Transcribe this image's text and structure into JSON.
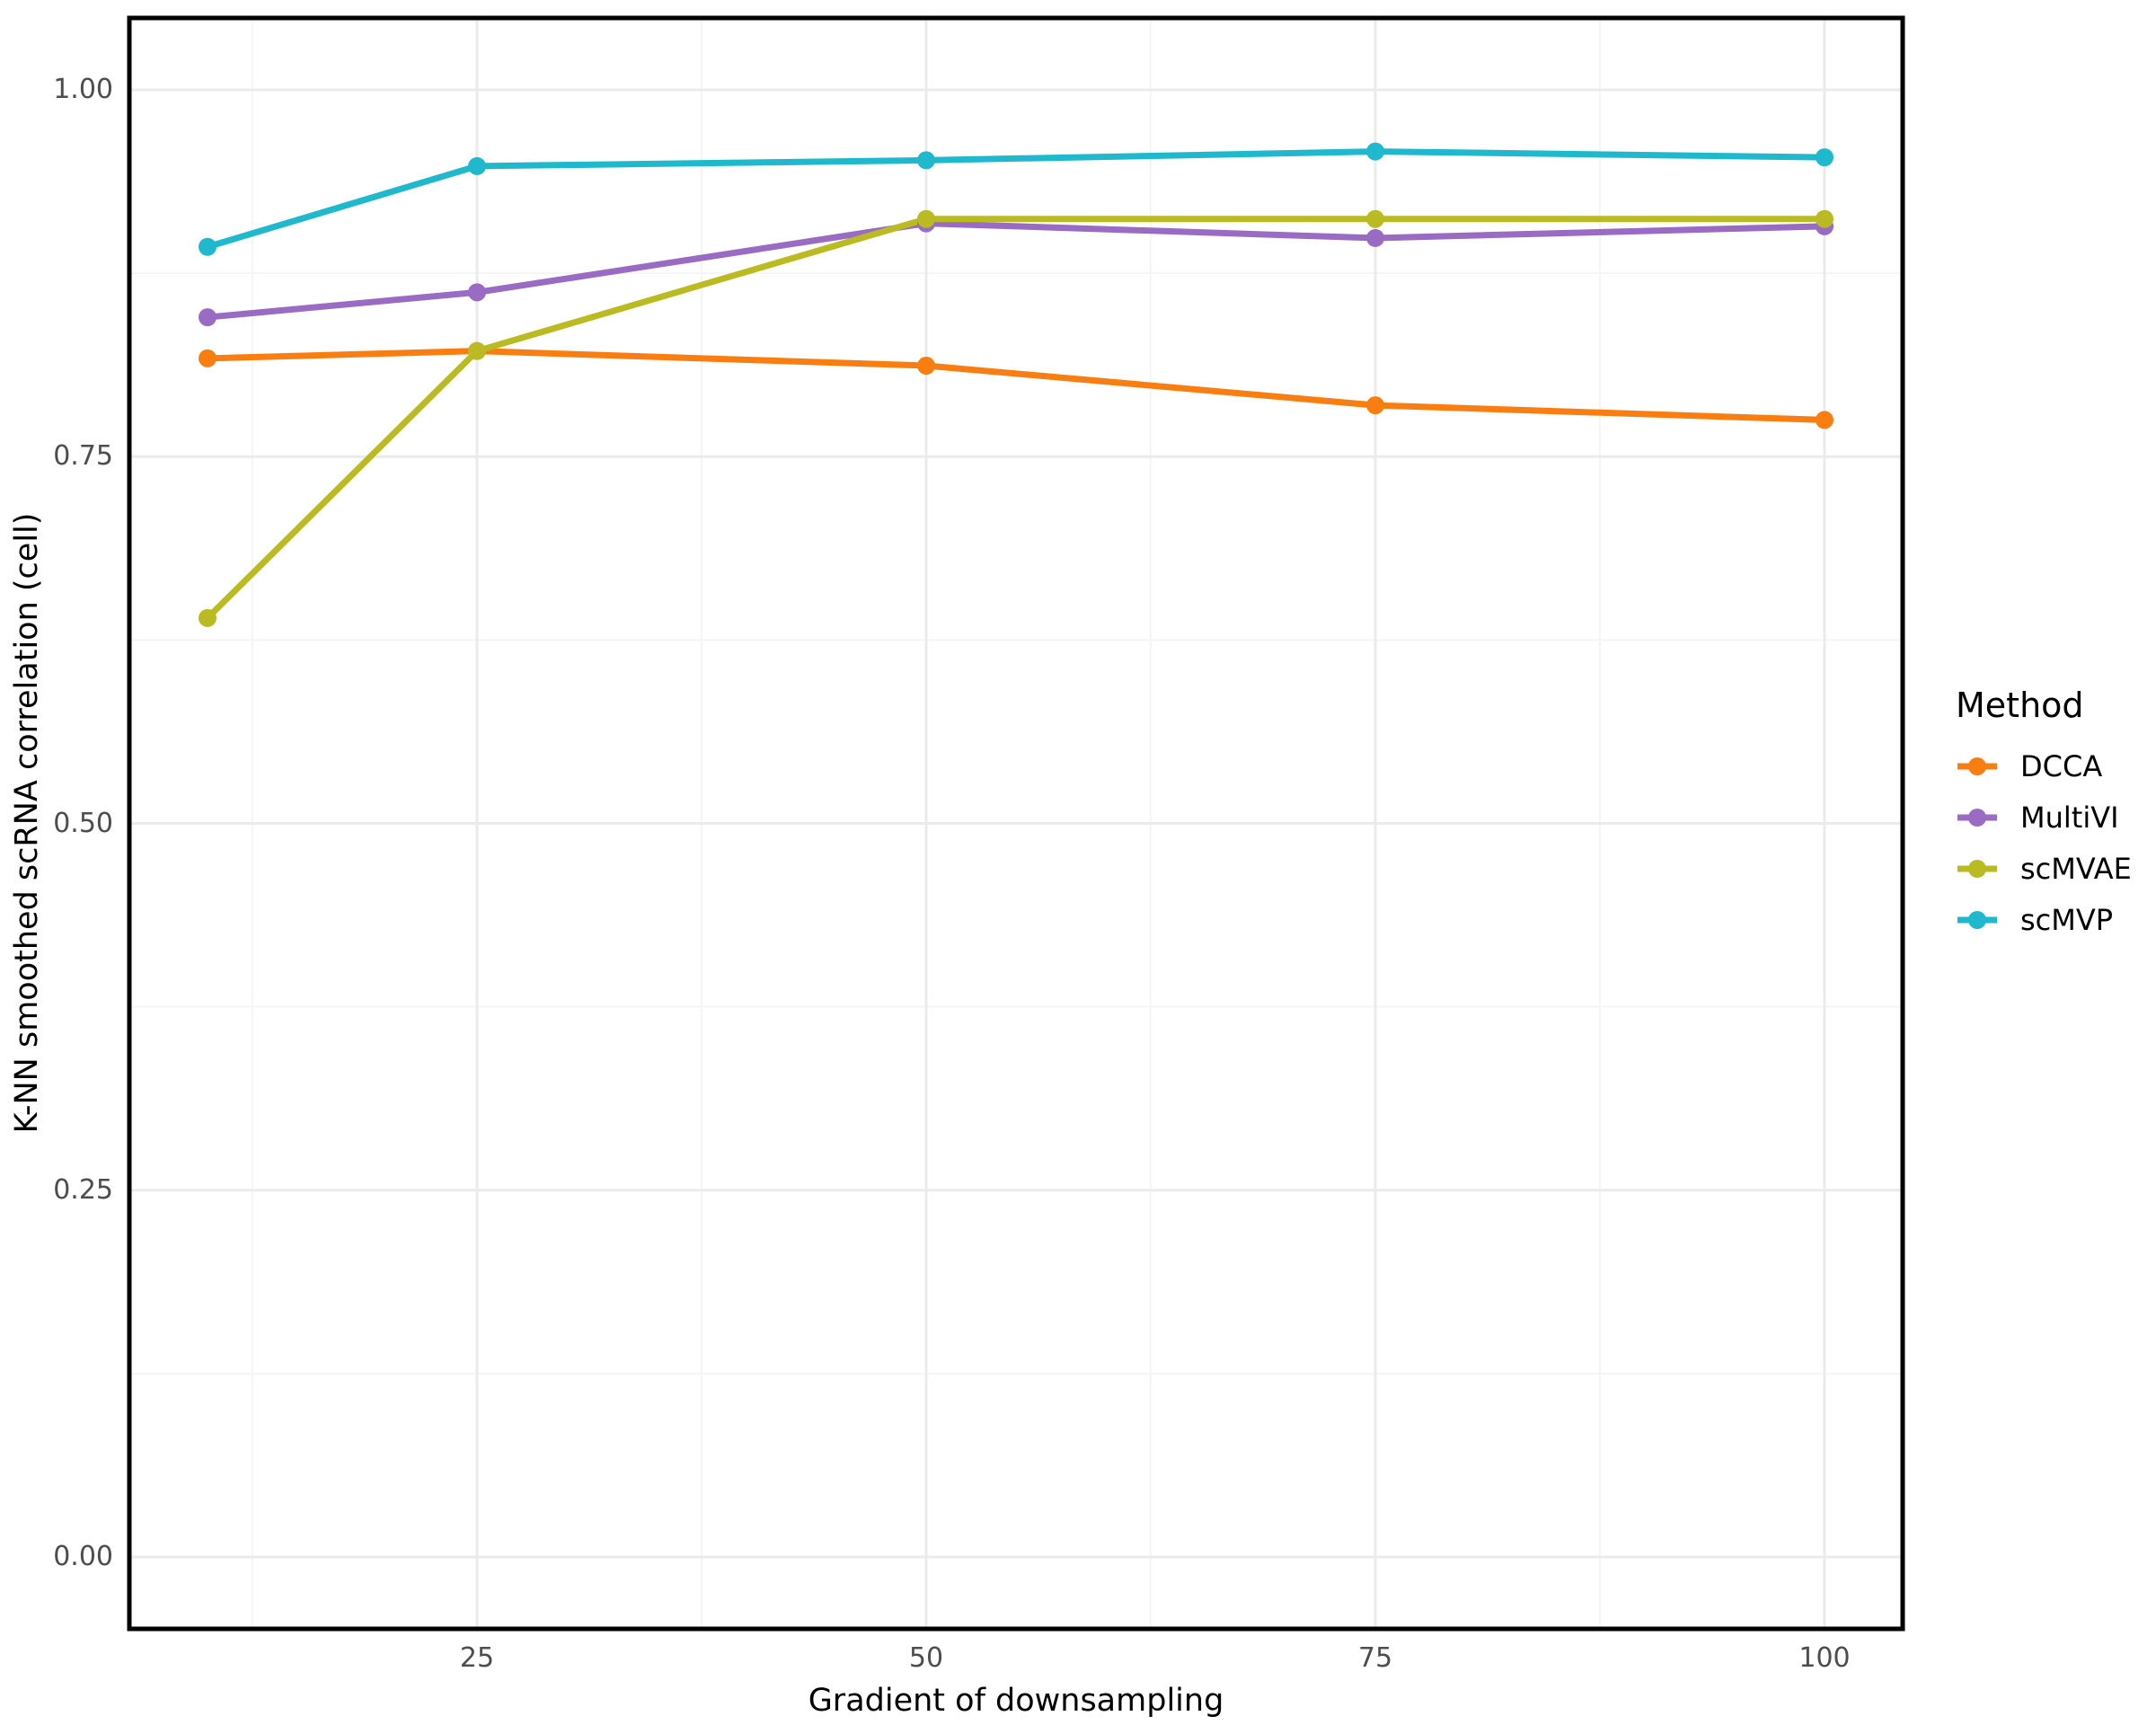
{
  "chart_data": {
    "type": "line",
    "title": "",
    "xlabel": "Gradient of downsampling",
    "ylabel": "K-NN smoothed scRNA correlation (cell)",
    "x": [
      10,
      25,
      50,
      75,
      100
    ],
    "series": [
      {
        "name": "DCCA",
        "color": "#F97E11",
        "values": [
          0.817,
          0.822,
          0.812,
          0.785,
          0.775
        ]
      },
      {
        "name": "MultiVI",
        "color": "#9A6BC3",
        "values": [
          0.845,
          0.862,
          0.909,
          0.899,
          0.907
        ]
      },
      {
        "name": "scMVAE",
        "color": "#BABB23",
        "values": [
          0.64,
          0.822,
          0.912,
          0.912,
          0.912
        ]
      },
      {
        "name": "scMVP",
        "color": "#1FB8CC",
        "values": [
          0.893,
          0.948,
          0.952,
          0.958,
          0.954
        ]
      }
    ],
    "xticks": {
      "values": [
        25,
        50,
        75,
        100
      ],
      "labels": [
        "25",
        "50",
        "75",
        "100"
      ]
    },
    "yticks": {
      "values": [
        0,
        0.25,
        0.5,
        0.75,
        1.0
      ],
      "labels": [
        "0.00",
        "0.25",
        "0.50",
        "0.75",
        "1.00"
      ]
    },
    "x_minor": [
      12.5,
      37.5,
      62.5,
      87.5
    ],
    "y_minor": [
      0.125,
      0.375,
      0.625,
      0.875
    ],
    "xlim": [
      5.65,
      104.35
    ],
    "ylim": [
      -0.049,
      1.049
    ],
    "grid": {
      "major_color": "#EBEBEB",
      "minor_color": "#F5F5F5"
    },
    "panel_border_color": "#000000",
    "tick_label_color": "#4d4d4d",
    "legend": {
      "title": "Method",
      "position": "right"
    }
  }
}
